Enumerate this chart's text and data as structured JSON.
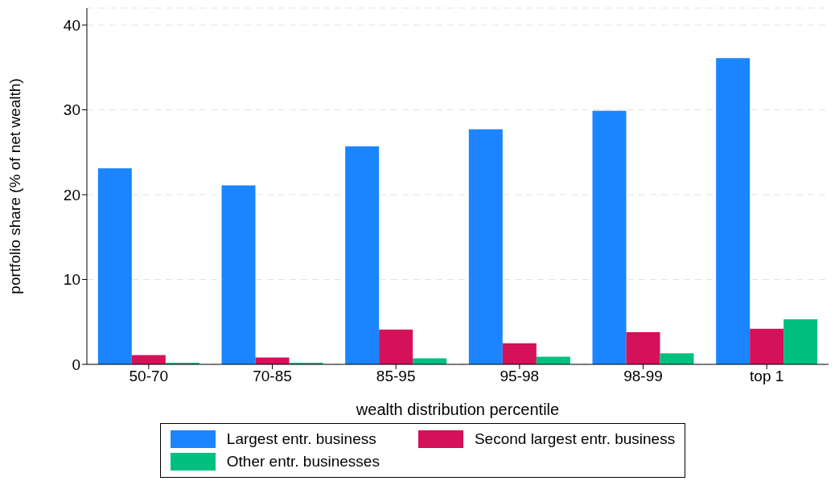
{
  "chart_data": {
    "type": "bar",
    "xlabel": "wealth distribution percentile",
    "ylabel": "portfolio share (% of net wealth)",
    "categories": [
      "50-70",
      "70-85",
      "85-95",
      "95-98",
      "98-99",
      "top 1"
    ],
    "series": [
      {
        "name": "Largest entr. business",
        "color": "#1a85ff",
        "values": [
          23.1,
          21.1,
          25.7,
          27.7,
          29.9,
          36.1
        ]
      },
      {
        "name": "Second largest entr. business",
        "color": "#d41159",
        "values": [
          1.1,
          0.8,
          4.1,
          2.5,
          3.8,
          4.2
        ]
      },
      {
        "name": "Other entr. businesses",
        "color": "#00c07f",
        "values": [
          0.2,
          0.2,
          0.7,
          0.9,
          1.3,
          5.3
        ]
      }
    ],
    "ylim": [
      0,
      42
    ],
    "yticks": [
      0,
      10,
      20,
      30,
      40
    ],
    "grid": "y",
    "legend": "bottom"
  }
}
